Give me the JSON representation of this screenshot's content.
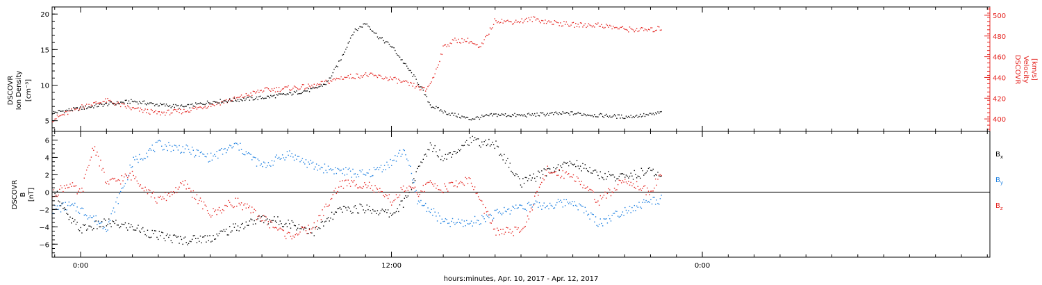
{
  "x_axis": {
    "title": "hours:minutes, Apr. 10, 2017 - Apr. 12, 2017",
    "tick_labels": [
      "0:00",
      "12:00",
      "0:00"
    ],
    "tick_hours": [
      0,
      12,
      24
    ],
    "range_hours": [
      -1.1,
      35.1
    ]
  },
  "panels": {
    "density": {
      "ylabel_lines": [
        "DSCOVR",
        "Ion Density",
        "[cm⁻³]"
      ],
      "right_ylabel_lines": [
        "DSCOVR",
        "Velocity",
        "[km/s]"
      ],
      "left_ticks": [
        "5",
        "10",
        "15",
        "20"
      ],
      "right_ticks": [
        "400",
        "420",
        "440",
        "460",
        "480",
        "500"
      ]
    },
    "bfield": {
      "ylabel_lines": [
        "DSCOVR",
        "B",
        "[nT]"
      ],
      "ticks": [
        "6",
        "4",
        "2",
        "0",
        "−2",
        "−4",
        "−6"
      ],
      "legend": [
        {
          "base": "B",
          "sub": "x",
          "color": "#000000"
        },
        {
          "base": "B",
          "sub": "y",
          "color": "#1a7ee0"
        },
        {
          "base": "B",
          "sub": "z",
          "color": "#e4231f"
        }
      ]
    }
  },
  "colors": {
    "black": "#000000",
    "blue": "#1a7ee0",
    "red": "#e4231f"
  },
  "chart_data": [
    {
      "type": "scatter",
      "title": "",
      "xlabel": "hours:minutes, Apr. 10, 2017 - Apr. 12, 2017",
      "ylabel": "DSCOVR Ion Density [cm⁻³]",
      "y2label": "DSCOVR Velocity [km/s]",
      "xlim_hours": [
        -1.1,
        35.1
      ],
      "ylim": [
        3.5,
        21
      ],
      "y2lim": [
        388,
        508
      ],
      "series": [
        {
          "name": "DSCOVR Ion Density",
          "axis": "left",
          "color": "#000000",
          "x_hours": [
            -1.1,
            0,
            1,
            2,
            3,
            4,
            5,
            6,
            7,
            8,
            9,
            9.5,
            10,
            10.5,
            11,
            11.5,
            12,
            12.5,
            13,
            13.5,
            14,
            15,
            16,
            17,
            18,
            19,
            20,
            21,
            22,
            22.4
          ],
          "y": [
            6.2,
            6.8,
            7.4,
            7.8,
            7.3,
            7.0,
            7.7,
            8.0,
            8.3,
            8.8,
            9.5,
            10.4,
            13.5,
            17.5,
            18.8,
            16.8,
            15.5,
            13.0,
            10.5,
            7.2,
            6.3,
            5.3,
            5.9,
            5.8,
            6.0,
            6.1,
            5.8,
            5.6,
            5.9,
            6.2
          ]
        },
        {
          "name": "DSCOVR Velocity",
          "axis": "right",
          "color": "#e4231f",
          "x_hours": [
            -1.1,
            0,
            1,
            2,
            3,
            4,
            5,
            6,
            7,
            8,
            9,
            10,
            11,
            12,
            12.9,
            13.3,
            13.6,
            14,
            14.4,
            15,
            15.4,
            16,
            16.5,
            17,
            17.5,
            18,
            19,
            20,
            21,
            22,
            22.4
          ],
          "y": [
            400,
            412,
            418,
            410,
            406,
            408,
            414,
            420,
            428,
            430,
            432,
            440,
            443,
            439,
            432,
            428,
            440,
            470,
            476,
            476,
            468,
            496,
            494,
            495,
            497,
            494,
            491,
            491,
            487,
            486,
            488
          ]
        }
      ]
    },
    {
      "type": "scatter",
      "title": "",
      "xlabel": "hours:minutes, Apr. 10, 2017 - Apr. 12, 2017",
      "ylabel": "DSCOVR B [nT]",
      "xlim_hours": [
        -1.1,
        35.1
      ],
      "ylim": [
        -7.5,
        7
      ],
      "series": [
        {
          "name": "Bx",
          "color": "#000000",
          "x_hours": [
            -1.1,
            -0.5,
            0,
            1,
            2,
            3,
            4,
            5,
            6,
            7,
            8,
            9,
            10,
            11,
            12,
            12.5,
            13,
            13.5,
            14,
            15,
            16,
            17,
            18,
            19,
            20,
            21,
            22,
            22.4
          ],
          "y": [
            1.0,
            -3.0,
            -4.2,
            -3.5,
            -4.0,
            -5.0,
            -5.5,
            -5.2,
            -4.0,
            -3.0,
            -3.5,
            -4.5,
            -2.0,
            -1.8,
            -2.5,
            -1.0,
            2.5,
            5.5,
            4.0,
            6.0,
            5.5,
            1.0,
            2.5,
            3.5,
            2.0,
            1.8,
            2.5,
            1.8
          ]
        },
        {
          "name": "By",
          "color": "#1a7ee0",
          "x_hours": [
            -1.1,
            -0.5,
            0,
            1,
            2,
            3,
            4,
            5,
            6,
            7,
            8,
            9,
            10,
            11,
            12,
            12.5,
            13,
            13.5,
            14,
            15,
            16,
            17,
            18,
            19,
            20,
            21,
            22,
            22.4
          ],
          "y": [
            -2.0,
            -1.5,
            -2.0,
            -4.0,
            3.5,
            5.5,
            5.0,
            4.0,
            5.5,
            3.0,
            4.5,
            3.0,
            2.5,
            2.0,
            3.5,
            5.0,
            -1.0,
            -2.0,
            -3.5,
            -3.5,
            -2.5,
            -1.5,
            -1.5,
            -1.0,
            -3.5,
            -2.0,
            -1.0,
            -0.8
          ]
        },
        {
          "name": "Bz",
          "color": "#e4231f",
          "x_hours": [
            -1.1,
            -0.5,
            0,
            0.5,
            1,
            2,
            3,
            4,
            5,
            6,
            7,
            8,
            9,
            10,
            11,
            12,
            12.5,
            13,
            13.5,
            14,
            15,
            16,
            17,
            18,
            19,
            20,
            21,
            22,
            22.4
          ],
          "y": [
            -0.3,
            1.0,
            -0.2,
            5.5,
            1.0,
            2.0,
            -1.0,
            1.0,
            -2.5,
            -1.0,
            -3.0,
            -5.0,
            -4.0,
            1.0,
            1.0,
            -1.0,
            0.5,
            0,
            1.0,
            0.5,
            1.5,
            -4.5,
            -4.5,
            2.5,
            2.0,
            -1.0,
            1.5,
            0,
            2.5
          ]
        }
      ]
    }
  ]
}
